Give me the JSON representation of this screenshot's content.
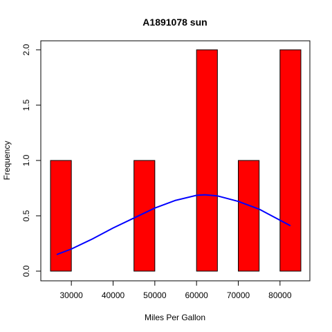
{
  "chart_data": {
    "type": "bar",
    "title": "A1891078 sun",
    "xlabel": "Miles Per Gallon",
    "ylabel": "Frequency",
    "xlim": [
      25000,
      85000
    ],
    "ylim": [
      0,
      2
    ],
    "xticks": [
      30000,
      40000,
      50000,
      60000,
      70000,
      80000
    ],
    "yticks": [
      0.0,
      0.5,
      1.0,
      1.5,
      2.0
    ],
    "ytick_labels": [
      "0.0",
      "0.5",
      "1.0",
      "1.5",
      "2.0"
    ],
    "bins": [
      {
        "start": 25000,
        "end": 30000,
        "count": 1
      },
      {
        "start": 30000,
        "end": 35000,
        "count": 0
      },
      {
        "start": 35000,
        "end": 40000,
        "count": 0
      },
      {
        "start": 40000,
        "end": 45000,
        "count": 0
      },
      {
        "start": 45000,
        "end": 50000,
        "count": 1
      },
      {
        "start": 50000,
        "end": 55000,
        "count": 0
      },
      {
        "start": 55000,
        "end": 60000,
        "count": 0
      },
      {
        "start": 60000,
        "end": 65000,
        "count": 2
      },
      {
        "start": 65000,
        "end": 70000,
        "count": 0
      },
      {
        "start": 70000,
        "end": 75000,
        "count": 1
      },
      {
        "start": 75000,
        "end": 80000,
        "count": 0
      },
      {
        "start": 80000,
        "end": 85000,
        "count": 2
      }
    ],
    "bar_color": "#ff0000",
    "curve": {
      "color": "#0000ff",
      "x": [
        26500,
        30000,
        35000,
        40000,
        45000,
        50000,
        55000,
        60000,
        62000,
        65000,
        70000,
        75000,
        80000,
        82500
      ],
      "y": [
        0.15,
        0.2,
        0.29,
        0.39,
        0.48,
        0.57,
        0.64,
        0.685,
        0.69,
        0.68,
        0.63,
        0.56,
        0.46,
        0.41
      ]
    },
    "grid": false
  }
}
